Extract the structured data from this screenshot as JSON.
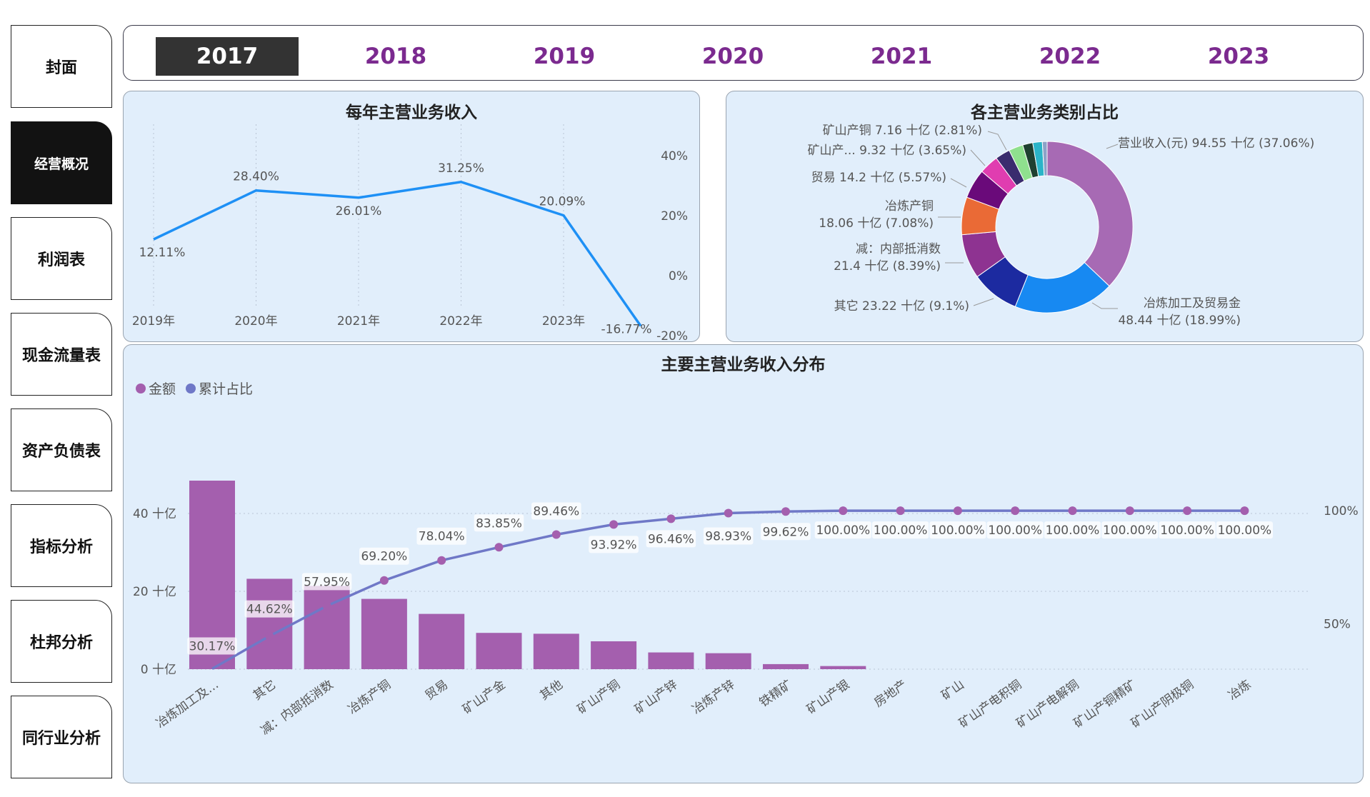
{
  "nav": {
    "items": [
      {
        "label": "封面",
        "active": false
      },
      {
        "label": "经营概况",
        "active": true
      },
      {
        "label": "利润表",
        "active": false
      },
      {
        "label": "现金流量表",
        "active": false
      },
      {
        "label": "资产负债表",
        "active": false
      },
      {
        "label": "指标分析",
        "active": false
      },
      {
        "label": "杜邦分析",
        "active": false
      },
      {
        "label": "同行业分析",
        "active": false
      }
    ]
  },
  "years": {
    "items": [
      "2017",
      "2018",
      "2019",
      "2020",
      "2021",
      "2022",
      "2023"
    ],
    "selected": "2017"
  },
  "colors": {
    "line": "#1e90f5",
    "bar": "#a45fae",
    "cumulative_line": "#6f78c7",
    "panel_bg": "#e1eefb",
    "year_text": "#7b2a8f"
  },
  "chart_data": [
    {
      "type": "line",
      "title": "每年主营业务收入",
      "x": [
        "2019年",
        "2020年",
        "2021年",
        "2022年",
        "2023年",
        ""
      ],
      "values": [
        12.11,
        28.4,
        26.01,
        31.25,
        20.09,
        -16.77
      ],
      "data_labels": [
        "12.11%",
        "28.40%",
        "26.01%",
        "31.25%",
        "20.09%",
        "-16.77%"
      ],
      "y_ticks": [
        "40%",
        "20%",
        "0%",
        "-20%"
      ],
      "ylim": [
        -20,
        40
      ],
      "grid": true
    },
    {
      "type": "pie",
      "title": "各主营业务类别占比",
      "slices": [
        {
          "label": "营业收入(元) 94.55 十亿 (37.06%)",
          "value": 37.06,
          "color": "#a76ab4"
        },
        {
          "label": "冶炼加工及贸易金",
          "label2": "48.44 十亿 (18.99%)",
          "value": 18.99,
          "color": "#1789f2"
        },
        {
          "label": "其它 23.22 十亿 (9.1%)",
          "value": 9.1,
          "color": "#1c2aa0"
        },
        {
          "label": "减：内部抵消数",
          "label2": "21.4 十亿 (8.39%)",
          "value": 8.39,
          "color": "#8e3391"
        },
        {
          "label": "冶炼产铜",
          "label2": "18.06 十亿 (7.08%)",
          "value": 7.08,
          "color": "#ea6a36"
        },
        {
          "label": "贸易 14.2 十亿 (5.57%)",
          "value": 5.57,
          "color": "#6a0a7a"
        },
        {
          "label": "矿山产... 9.32 十亿 (3.65%)",
          "value": 3.65,
          "color": "#e03db0"
        },
        {
          "label": "矿山产铜 7.16 十亿 (2.81%)",
          "value": 2.81,
          "color": "#3a2c6e"
        },
        {
          "label": "",
          "value": 2.7,
          "color": "#8fe08e"
        },
        {
          "label": "",
          "value": 1.9,
          "color": "#1f4030"
        },
        {
          "label": "",
          "value": 1.8,
          "color": "#2bb4c8"
        },
        {
          "label": "",
          "value": 0.9,
          "color": "#8da2c8"
        }
      ]
    },
    {
      "type": "bar",
      "title": "主要主营业务收入分布",
      "legend": [
        "金额",
        "累计占比"
      ],
      "categories": [
        "冶炼加工及…",
        "其它",
        "减：内部抵消数",
        "冶炼产铜",
        "贸易",
        "矿山产金",
        "其他",
        "矿山产铜",
        "矿山产锌",
        "冶炼产锌",
        "铁精矿",
        "矿山产银",
        "房地产",
        "矿山",
        "矿山产电积铜",
        "矿山产电解铜",
        "矿山产铜精矿",
        "矿山产阴极铜",
        "冶炼"
      ],
      "values": [
        48.44,
        23.22,
        21.4,
        18.06,
        14.2,
        9.32,
        9.1,
        7.16,
        4.3,
        4.1,
        1.3,
        0.8,
        0,
        0,
        0,
        0,
        0,
        0,
        0
      ],
      "cumulative": [
        30.17,
        44.62,
        57.95,
        69.2,
        78.04,
        83.85,
        89.46,
        93.92,
        96.46,
        98.93,
        99.62,
        100,
        100,
        100,
        100,
        100,
        100,
        100,
        100
      ],
      "cumulative_labels": [
        "30.17%",
        "44.62%",
        "57.95%",
        "69.20%",
        "78.04%",
        "83.85%",
        "89.46%",
        "93.92%",
        "96.46%",
        "98.93%",
        "99.62%",
        "100.00%",
        "100.00%",
        "100.00%",
        "100.00%",
        "100.00%",
        "100.00%",
        "100.00%",
        "100.00%"
      ],
      "y_ticks": [
        "0 十亿",
        "20 十亿",
        "40 十亿"
      ],
      "y_tick_values": [
        0,
        20,
        40
      ],
      "y2_ticks": [
        "50%",
        "100%"
      ],
      "ylim": [
        0,
        52
      ],
      "grid": true
    }
  ]
}
